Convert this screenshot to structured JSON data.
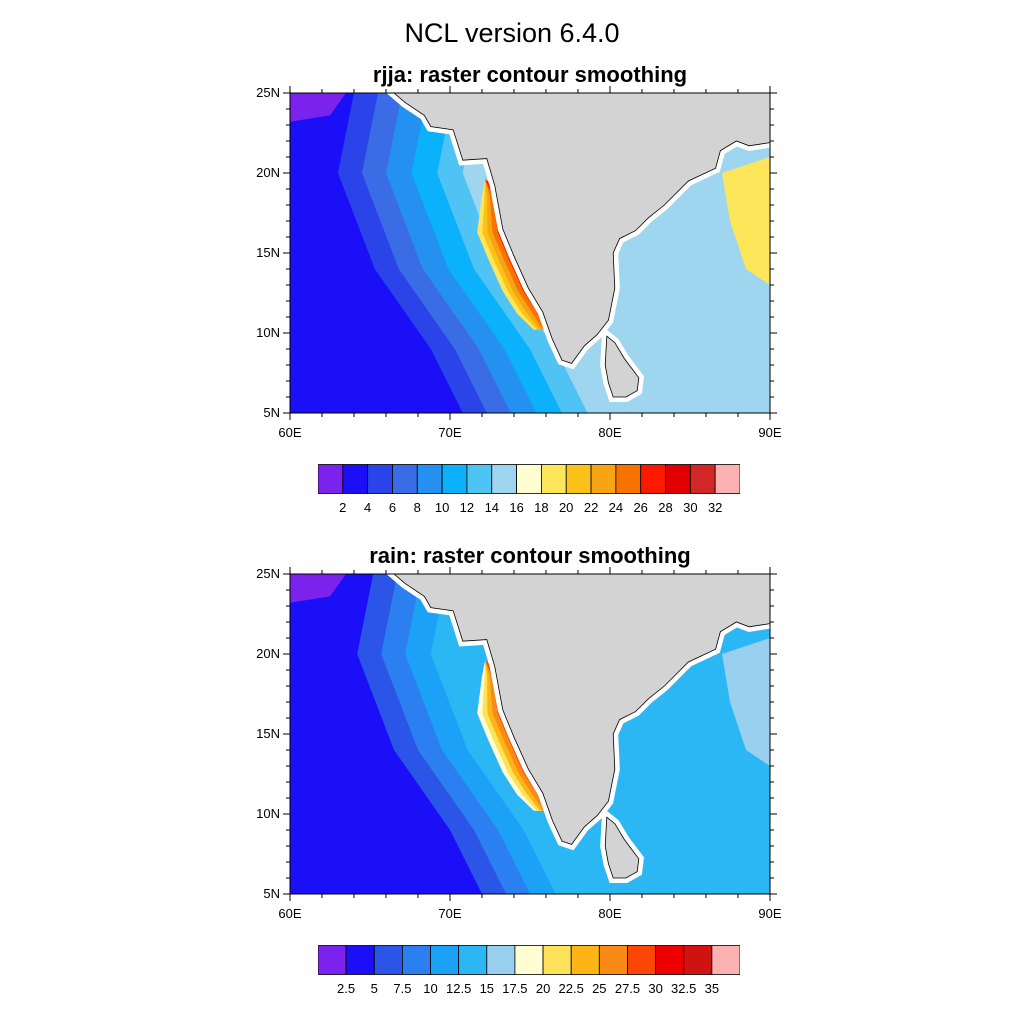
{
  "page": {
    "title": "NCL version 6.4.0"
  },
  "colors": {
    "land": "#d3d3d3",
    "coast_white": "#ffffff",
    "outline": "#000000"
  },
  "axes": {
    "x_ticks": [
      "60E",
      "70E",
      "80E",
      "90E"
    ],
    "y_ticks": [
      "25N",
      "20N",
      "15N",
      "10N",
      "5N"
    ],
    "lon_range": [
      60,
      90
    ],
    "lat_range": [
      5,
      25
    ]
  },
  "panels": [
    {
      "title": "rjja: raster contour smoothing",
      "variable": "rjja",
      "colorbar": {
        "labels": [
          "2",
          "4",
          "6",
          "8",
          "10",
          "12",
          "14",
          "16",
          "18",
          "20",
          "22",
          "24",
          "26",
          "28",
          "30",
          "32"
        ],
        "colors": [
          "#7b22ec",
          "#1a0ff7",
          "#2a44ea",
          "#3a6ce6",
          "#2491f0",
          "#0bb1fb",
          "#4fc4f4",
          "#9fd6ef",
          "#fefed0",
          "#fde65a",
          "#fcc21a",
          "#f7a312",
          "#f87200",
          "#fb1a00",
          "#e00000",
          "#d22727",
          "#fdb2b2"
        ]
      },
      "offshore_ramp": [
        1,
        2,
        3,
        4,
        5,
        6,
        7
      ],
      "coastal_peak_level": 13,
      "bay_levels": [
        7,
        9
      ]
    },
    {
      "title": "rain: raster contour smoothing",
      "variable": "rain",
      "colorbar": {
        "labels": [
          "2.5",
          "5",
          "7.5",
          "10",
          "12.5",
          "15",
          "17.5",
          "20",
          "22.5",
          "25",
          "27.5",
          "30",
          "32.5",
          "35"
        ],
        "colors": [
          "#7b22ec",
          "#1a0ff7",
          "#2a55e7",
          "#2b7ff0",
          "#1ba1f5",
          "#2bb7f4",
          "#99cfef",
          "#fefed0",
          "#fde25a",
          "#fcb515",
          "#f98a16",
          "#fb4608",
          "#ef0000",
          "#cf1212",
          "#fdb2b2"
        ]
      },
      "offshore_ramp": [
        1,
        2,
        3,
        4,
        5
      ],
      "coastal_peak_level": 11,
      "bay_levels": [
        5,
        6
      ]
    }
  ]
}
